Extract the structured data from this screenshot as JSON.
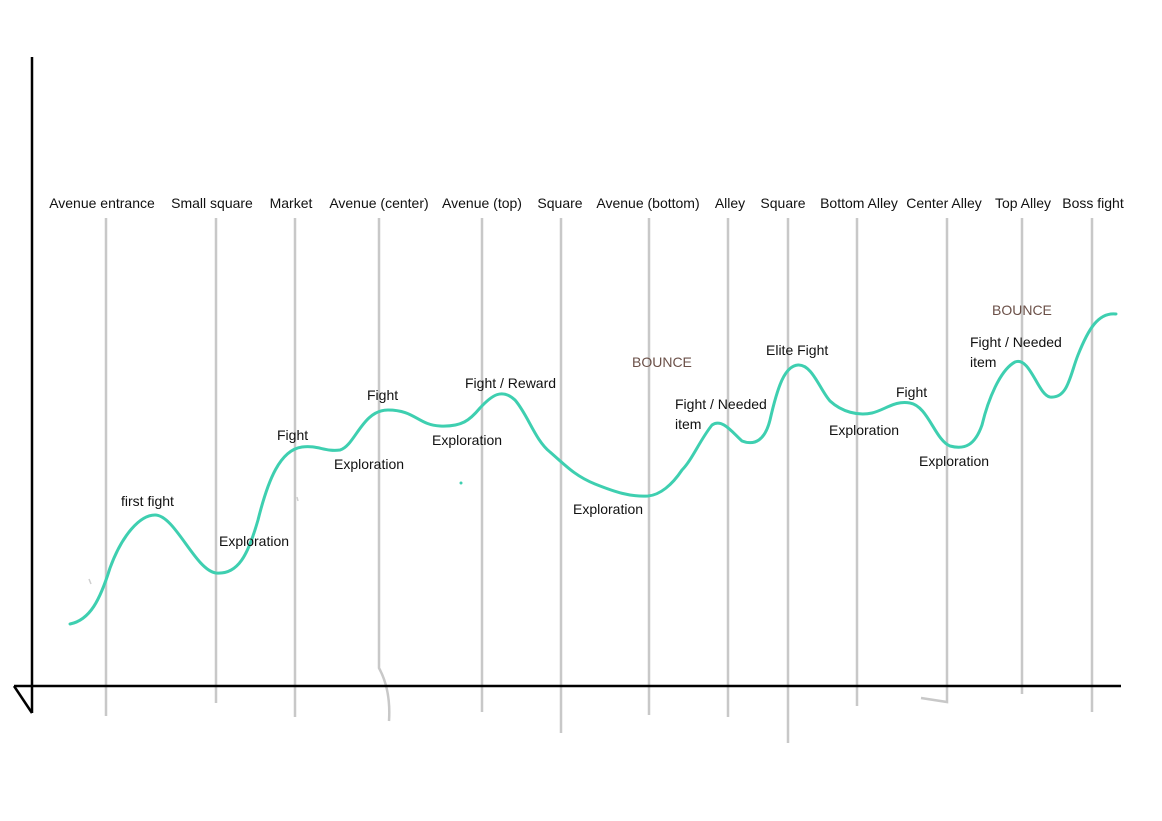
{
  "locations": [
    "Avenue entrance",
    "Small square",
    "Market",
    "Avenue (center)",
    "Avenue (top)",
    "Square",
    "Avenue (bottom)",
    "Alley",
    "Square",
    "Bottom Alley",
    "Center Alley",
    "Top Alley",
    "Boss fight"
  ],
  "annotations": [
    "first fight",
    "Exploration",
    "Fight",
    "Exploration",
    "Fight",
    "Exploration",
    "Fight / Reward",
    "Exploration",
    "Fight / Needed",
    "item",
    "Elite Fight",
    "Exploration",
    "Fight",
    "Exploration",
    "Fight / Needed",
    "item"
  ],
  "bounce_labels": [
    "BOUNCE",
    "BOUNCE"
  ],
  "colors": {
    "curve": "#3ecfb0",
    "guide": "#c8c8c8",
    "axis": "#000000",
    "bounce": "#6b5048"
  }
}
